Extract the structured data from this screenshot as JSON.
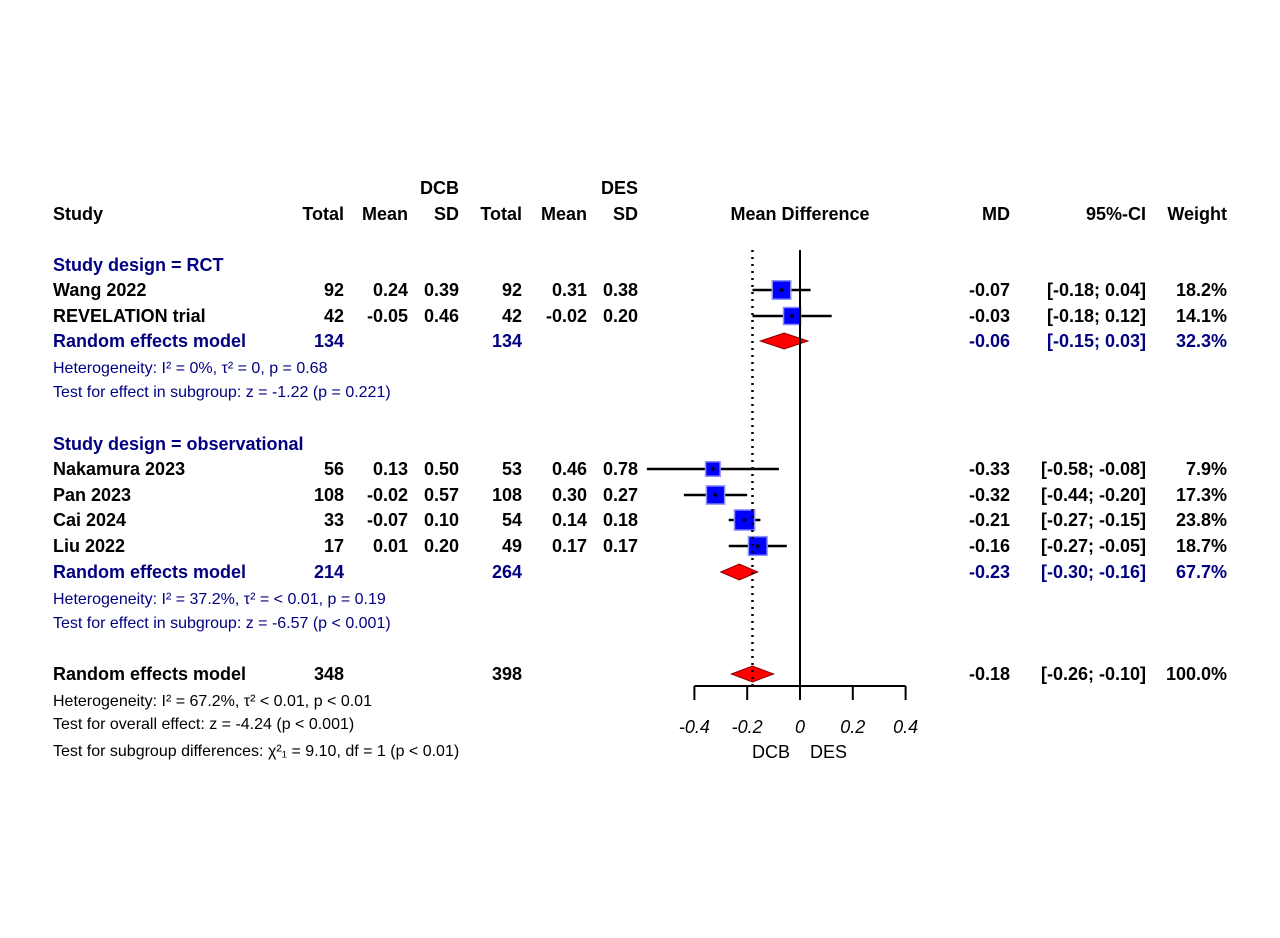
{
  "chart_data": {
    "type": "forest",
    "headers": {
      "group_dcb": "DCB",
      "group_des": "DES",
      "study": "Study",
      "total": "Total",
      "mean": "Mean",
      "sd": "SD",
      "plot": "Mean Difference",
      "md": "MD",
      "ci": "95%-CI",
      "weight": "Weight"
    },
    "subgroups": [
      {
        "label": "Study design = RCT",
        "studies": [
          {
            "name": "Wang 2022",
            "dcb_total": "92",
            "dcb_mean": "0.24",
            "dcb_sd": "0.39",
            "des_total": "92",
            "des_mean": "0.31",
            "des_sd": "0.38",
            "md": -0.07,
            "lo": -0.18,
            "hi": 0.04,
            "md_text": "-0.07",
            "ci_text": "[-0.18;  0.04]",
            "weight": "18.2%",
            "w": 18.2
          },
          {
            "name": "REVELATION trial",
            "dcb_total": "42",
            "dcb_mean": "-0.05",
            "dcb_sd": "0.46",
            "des_total": "42",
            "des_mean": "-0.02",
            "des_sd": "0.20",
            "md": -0.03,
            "lo": -0.18,
            "hi": 0.12,
            "md_text": "-0.03",
            "ci_text": "[-0.18;  0.12]",
            "weight": "14.1%",
            "w": 14.1
          }
        ],
        "model": {
          "label": "Random effects model",
          "dcb_total": "134",
          "des_total": "134",
          "md": -0.06,
          "lo": -0.15,
          "hi": 0.03,
          "md_text": "-0.06",
          "ci_text": "[-0.15;  0.03]",
          "weight": "32.3%"
        },
        "heterogeneity": "Heterogeneity: I² = 0%, τ² = 0, p = 0.68",
        "test": "Test for effect in subgroup: z = -1.22 (p = 0.221)"
      },
      {
        "label": "Study design = observational",
        "studies": [
          {
            "name": "Nakamura 2023",
            "dcb_total": "56",
            "dcb_mean": "0.13",
            "dcb_sd": "0.50",
            "des_total": "53",
            "des_mean": "0.46",
            "des_sd": "0.78",
            "md": -0.33,
            "lo": -0.58,
            "hi": -0.08,
            "md_text": "-0.33",
            "ci_text": "[-0.58; -0.08]",
            "weight": "7.9%",
            "w": 7.9
          },
          {
            "name": "Pan 2023",
            "dcb_total": "108",
            "dcb_mean": "-0.02",
            "dcb_sd": "0.57",
            "des_total": "108",
            "des_mean": "0.30",
            "des_sd": "0.27",
            "md": -0.32,
            "lo": -0.44,
            "hi": -0.2,
            "md_text": "-0.32",
            "ci_text": "[-0.44; -0.20]",
            "weight": "17.3%",
            "w": 17.3
          },
          {
            "name": "Cai 2024",
            "dcb_total": "33",
            "dcb_mean": "-0.07",
            "dcb_sd": "0.10",
            "des_total": "54",
            "des_mean": "0.14",
            "des_sd": "0.18",
            "md": -0.21,
            "lo": -0.27,
            "hi": -0.15,
            "md_text": "-0.21",
            "ci_text": "[-0.27; -0.15]",
            "weight": "23.8%",
            "w": 23.8
          },
          {
            "name": "Liu 2022",
            "dcb_total": "17",
            "dcb_mean": "0.01",
            "dcb_sd": "0.20",
            "des_total": "49",
            "des_mean": "0.17",
            "des_sd": "0.17",
            "md": -0.16,
            "lo": -0.27,
            "hi": -0.05,
            "md_text": "-0.16",
            "ci_text": "[-0.27; -0.05]",
            "weight": "18.7%",
            "w": 18.7
          }
        ],
        "model": {
          "label": "Random effects model",
          "dcb_total": "214",
          "des_total": "264",
          "md": -0.23,
          "lo": -0.3,
          "hi": -0.16,
          "md_text": "-0.23",
          "ci_text": "[-0.30; -0.16]",
          "weight": "67.7%"
        },
        "heterogeneity": "Heterogeneity: I² = 37.2%, τ² = < 0.01, p = 0.19",
        "test": "Test for effect in subgroup: z = -6.57 (p < 0.001)"
      }
    ],
    "overall": {
      "label": "Random effects model",
      "dcb_total": "348",
      "des_total": "398",
      "md": -0.18,
      "lo": -0.26,
      "hi": -0.1,
      "md_text": "-0.18",
      "ci_text": "[-0.26; -0.10]",
      "weight": "100.0%",
      "heterogeneity": "Heterogeneity: I² = 67.2%, τ² < 0.01, p < 0.01",
      "test_overall": "Test for overall effect: z = -4.24 (p < 0.001)",
      "test_subgroups": "Test for subgroup differences: χ²₁ = 9.10, df = 1 (p < 0.01)"
    },
    "xaxis": {
      "ticks": [
        -0.4,
        -0.2,
        0,
        0.2,
        0.4
      ],
      "tick_labels": [
        "-0.4",
        "-0.2",
        "0",
        "0.2",
        "0.4"
      ],
      "xlim": [
        -0.4,
        0.4
      ],
      "label_left": "DCB",
      "label_right": "DES"
    },
    "colors": {
      "square": "#0000ff",
      "square_border": "#8f8fff",
      "diamond": "#ff0000",
      "subgroup_text": "#000080"
    }
  }
}
